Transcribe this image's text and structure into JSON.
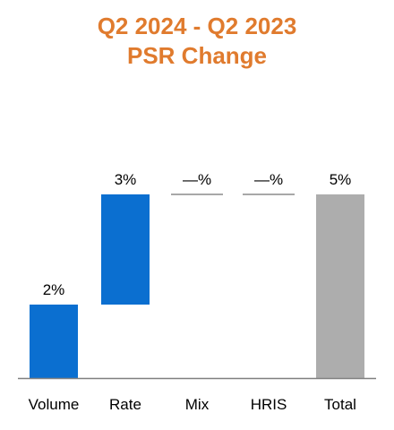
{
  "chart_data": {
    "type": "bar",
    "title_lines": [
      "Q2 2024 - Q2 2023",
      "PSR Change"
    ],
    "categories": [
      "Volume",
      "Rate",
      "Mix",
      "HRIS",
      "Total"
    ],
    "bars": [
      {
        "name": "Volume",
        "base": 0,
        "value": 2,
        "label": "2%"
      },
      {
        "name": "Rate",
        "base": 2,
        "value": 3,
        "label": "3%"
      },
      {
        "name": "Mix",
        "base": 5,
        "value": 0,
        "label": "—%"
      },
      {
        "name": "HRIS",
        "base": 5,
        "value": 0,
        "label": "—%"
      },
      {
        "name": "Total",
        "base": 0,
        "value": 5,
        "label": "5%"
      }
    ],
    "ylim": [
      0,
      5
    ],
    "grid": false,
    "legend": "none",
    "colors": {
      "increase": "#0B6FD0",
      "total": "#ADADAD",
      "zero_marker": "#8C8C8C",
      "axis": "#808080",
      "title": "#E07B2E"
    }
  }
}
